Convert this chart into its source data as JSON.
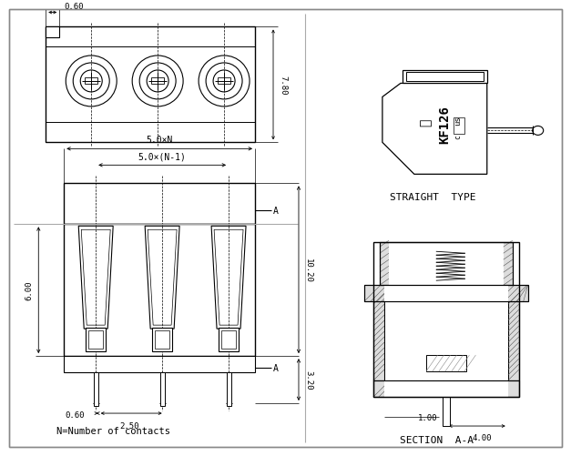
{
  "bg_color": "#ffffff",
  "border_color": "#aaaaaa",
  "line_color": "#000000",
  "straight_type_label": "STRAIGHT  TYPE",
  "section_label": "SECTION  A-A",
  "n_label": "N=Number of contacts",
  "dim_060_top": "0.60",
  "dim_780": "7.80",
  "dim_50N": "5.0×N",
  "dim_50N1": "5.0×(N-1)",
  "dim_600": "6.00",
  "dim_060_bot": "0.60",
  "dim_250": "2.50",
  "dim_1020": "10.20",
  "dim_320": "3.20",
  "dim_100": "1.00",
  "dim_400": "4.00",
  "label_A": "A"
}
